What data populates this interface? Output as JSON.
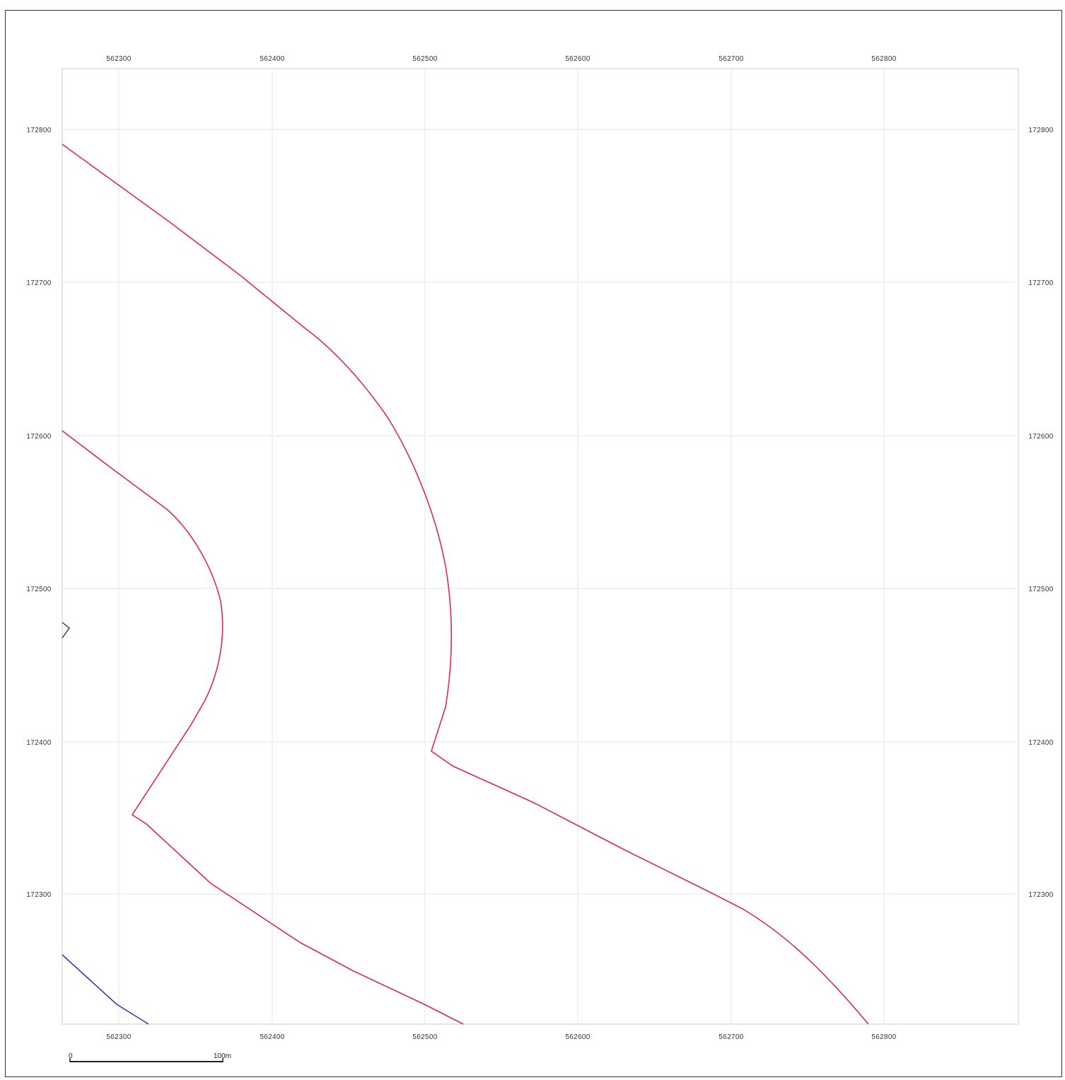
{
  "map": {
    "x_ticks": [
      "562300",
      "562400",
      "562500",
      "562600",
      "562700",
      "562800"
    ],
    "y_ticks": [
      "172800",
      "172700",
      "172600",
      "172500",
      "172400",
      "172300"
    ],
    "colors": {
      "boundary": "#e0245e",
      "water": "#3a3ab0",
      "feature": "#333333",
      "grid": "#e6e6e6"
    }
  },
  "scale_bar": {
    "start_label": "0",
    "end_label": "100m"
  }
}
